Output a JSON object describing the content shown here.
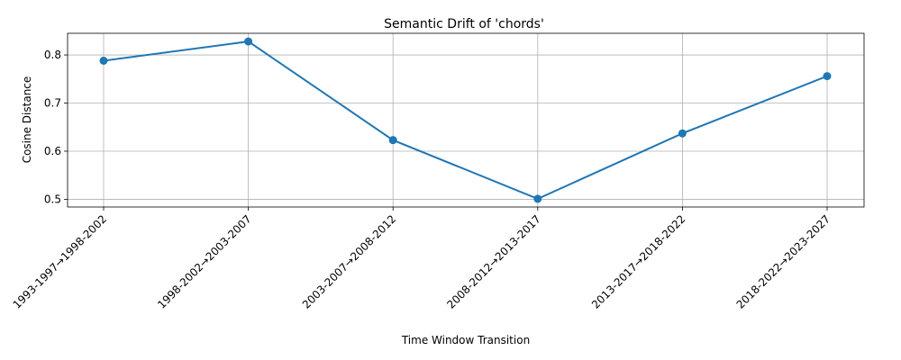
{
  "chart_data": {
    "type": "line",
    "title": "Semantic Drift of 'chords'",
    "xlabel": "Time Window Transition",
    "ylabel": "Cosine Distance",
    "categories": [
      "1993-1997→1998-2002",
      "1998-2002→2003-2007",
      "2003-2007→2008-2012",
      "2008-2012→2013-2017",
      "2013-2017→2018-2022",
      "2018-2022→2023-2027"
    ],
    "series": [
      {
        "values": [
          0.788,
          0.828,
          0.623,
          0.501,
          0.637,
          0.756
        ],
        "color": "#1f77b4",
        "marker": "circle"
      }
    ],
    "ylim": [
      0.484,
      0.845
    ],
    "yticks": [
      0.5,
      0.6,
      0.7,
      0.8
    ],
    "grid": true,
    "legend": "none"
  }
}
